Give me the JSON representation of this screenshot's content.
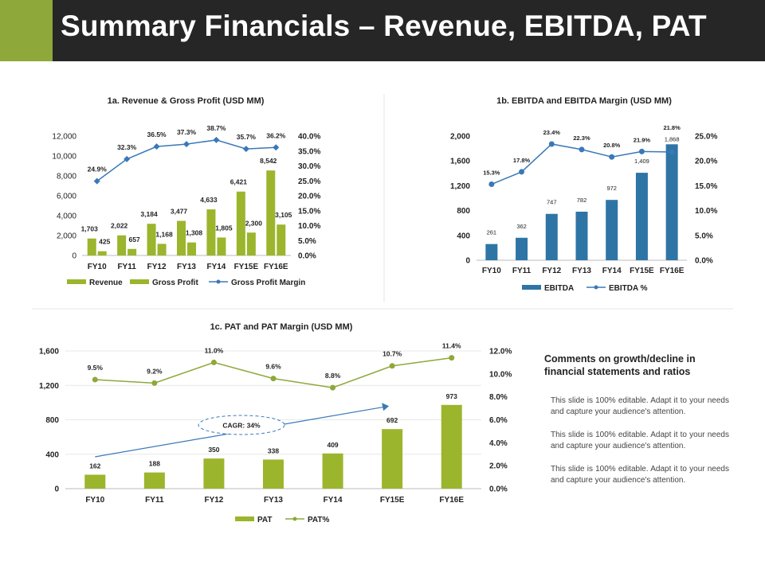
{
  "header": {
    "title": "Summary Financials – Revenue, EBITDA, PAT"
  },
  "colors": {
    "green": "#9bb52d",
    "green_dark": "#8ea83a",
    "blue_bar": "#2e75a6",
    "blue_line": "#3a78b8",
    "header_bg": "#262626"
  },
  "comments": {
    "heading": "Comments on growth/decline in financial statements and ratios",
    "paragraphs": [
      "This slide is 100% editable. Adapt it to your needs and capture your audience's attention.",
      "This slide is 100% editable. Adapt it to your needs and capture your audience's attention.",
      "This slide is 100% editable. Adapt it to your needs and capture your audience's attention."
    ]
  },
  "chart_data": [
    {
      "type": "bar",
      "title": "1a. Revenue & Gross Profit (USD MM)",
      "categories": [
        "FY10",
        "FY11",
        "FY12",
        "FY13",
        "FY14",
        "FY15E",
        "FY16E"
      ],
      "series": [
        {
          "name": "Revenue",
          "kind": "bar",
          "values": [
            1703,
            2022,
            3184,
            3477,
            4633,
            6421,
            8542
          ],
          "labels": [
            "1,703",
            "2,022",
            "3,184",
            "3,477",
            "4,633",
            "6,421",
            "8,542"
          ]
        },
        {
          "name": "Gross Profit",
          "kind": "bar",
          "values": [
            425,
            657,
            1168,
            1308,
            1805,
            2300,
            3105
          ],
          "labels": [
            "425",
            "657",
            "1,168",
            "1,308",
            "1,805",
            "2,300",
            "3,105"
          ]
        },
        {
          "name": "Gross Profit Margin",
          "kind": "line",
          "axis": "right",
          "values": [
            24.9,
            32.3,
            36.5,
            37.3,
            38.7,
            35.7,
            36.2
          ],
          "labels": [
            "24.9%",
            "32.3%",
            "36.5%",
            "37.3%",
            "38.7%",
            "35.7%",
            "36.2%"
          ]
        }
      ],
      "ylim": [
        0,
        12000
      ],
      "y_ticks": [
        "0",
        "2,000",
        "4,000",
        "6,000",
        "8,000",
        "10,000",
        "12,000"
      ],
      "y2lim": [
        0,
        40
      ],
      "y2_ticks": [
        "0.0%",
        "5.0%",
        "10.0%",
        "15.0%",
        "20.0%",
        "25.0%",
        "30.0%",
        "35.0%",
        "40.0%"
      ],
      "legend": "bottom"
    },
    {
      "type": "bar",
      "title": "1b. EBITDA  and EBITDA  Margin (USD MM)",
      "categories": [
        "FY10",
        "FY11",
        "FY12",
        "FY13",
        "FY14",
        "FY15E",
        "FY16E"
      ],
      "series": [
        {
          "name": "EBITDA",
          "kind": "bar",
          "values": [
            261,
            362,
            747,
            782,
            972,
            1409,
            1868
          ],
          "labels": [
            "261",
            "362",
            "747",
            "782",
            "972",
            "1,409",
            "1,868"
          ]
        },
        {
          "name": "EBITDA %",
          "kind": "line",
          "axis": "right",
          "values": [
            15.3,
            17.8,
            23.4,
            22.3,
            20.8,
            21.9,
            21.8
          ],
          "labels": [
            "15.3%",
            "17.8%",
            "23.4%",
            "22.3%",
            "20.8%",
            "21.9%",
            "21.8%"
          ]
        }
      ],
      "ylim": [
        0,
        2000
      ],
      "y_ticks": [
        "0",
        "400",
        "800",
        "1,200",
        "1,600",
        "2,000"
      ],
      "y2lim": [
        0,
        25
      ],
      "y2_ticks": [
        "0.0%",
        "5.0%",
        "10.0%",
        "15.0%",
        "20.0%",
        "25.0%"
      ],
      "legend": "bottom"
    },
    {
      "type": "bar",
      "title": "1c. PAT and PAT Margin (USD MM)",
      "categories": [
        "FY10",
        "FY11",
        "FY12",
        "FY13",
        "FY14",
        "FY15E",
        "FY16E"
      ],
      "series": [
        {
          "name": "PAT",
          "kind": "bar",
          "values": [
            162,
            188,
            350,
            338,
            409,
            692,
            973
          ],
          "labels": [
            "162",
            "188",
            "350",
            "338",
            "409",
            "692",
            "973"
          ]
        },
        {
          "name": "PAT%",
          "kind": "line",
          "axis": "right",
          "values": [
            9.5,
            9.2,
            11.0,
            9.6,
            8.8,
            10.7,
            11.4
          ],
          "labels": [
            "9.5%",
            "9.2%",
            "11.0%",
            "9.6%",
            "8.8%",
            "10.7%",
            "11.4%"
          ]
        }
      ],
      "ylim": [
        0,
        1600
      ],
      "y_ticks": [
        "0",
        "400",
        "800",
        "1,200",
        "1,600"
      ],
      "y2lim": [
        0,
        12
      ],
      "y2_ticks": [
        "0.0%",
        "2.0%",
        "4.0%",
        "6.0%",
        "8.0%",
        "10.0%",
        "12.0%"
      ],
      "annotation": "CAGR: 34%",
      "legend": "bottom"
    }
  ]
}
